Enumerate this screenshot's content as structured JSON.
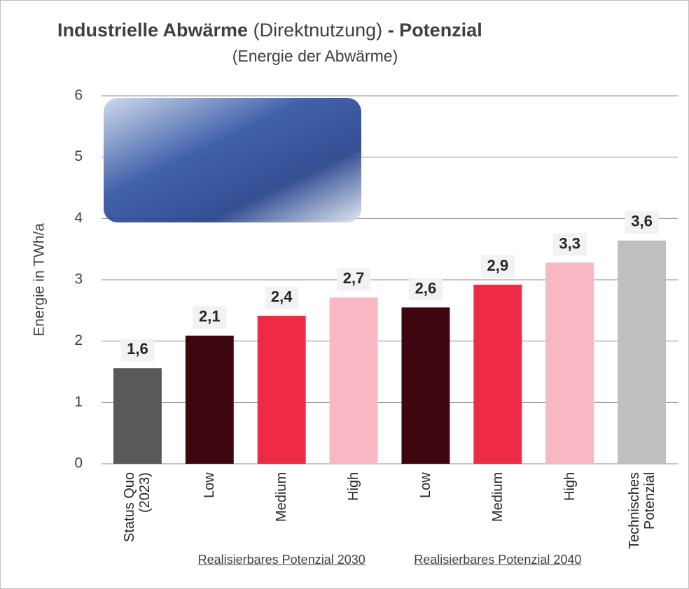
{
  "chart_data": {
    "type": "bar",
    "title": [
      "Industrielle Abwärme",
      "(Direktnutzung)",
      "- Potenzial"
    ],
    "subtitle": "(Energie der Abwärme)",
    "y_label": "Energie in TWh/a",
    "categories": [
      "Status Quo\n(2023)",
      "Low",
      "Medium",
      "High",
      "Low",
      "Medium",
      "High",
      "Technisches\nPotenzial"
    ],
    "values": [
      1.56,
      2.09,
      2.41,
      2.71,
      2.55,
      2.92,
      3.28,
      3.64
    ],
    "value_labels": [
      "1,6",
      "2,1",
      "2,4",
      "2,7",
      "2,6",
      "2,9",
      "3,3",
      "3,6"
    ],
    "colors": [
      "#595959",
      "#3d0610",
      "#ee2a45",
      "#f7b8c3",
      "#3d0610",
      "#ee2a45",
      "#f7b8c3",
      "#bfbfbf"
    ],
    "groups": [
      {
        "label": "Realisierbares Potenzial 2030",
        "from": 1,
        "to": 3
      },
      {
        "label": "Realisierbares Potenzial 2040",
        "from": 4,
        "to": 6
      }
    ],
    "ylim": [
      0,
      6
    ],
    "yticks": [
      0,
      1,
      2,
      3,
      4,
      5,
      6
    ],
    "grid": true
  }
}
